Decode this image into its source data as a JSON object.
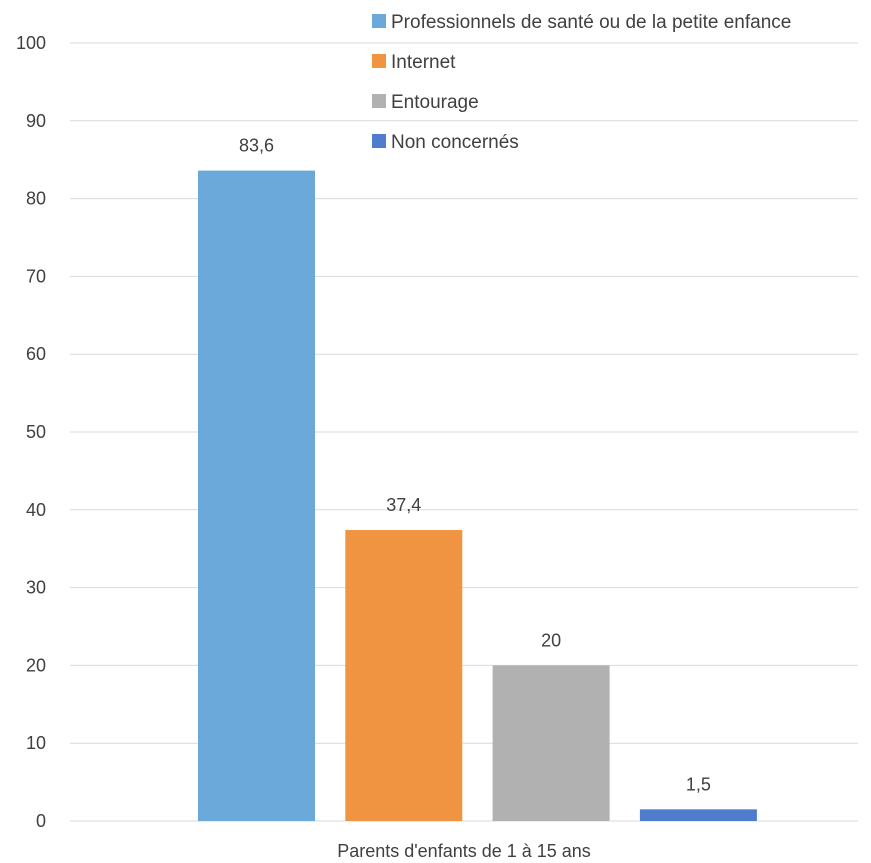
{
  "chart_data": {
    "type": "bar",
    "categories": [
      "Parents d'enfants de 1 à 15 ans"
    ],
    "series": [
      {
        "name": "Professionnels de santé ou de la petite enfance",
        "values": [
          83.6
        ],
        "label": "83,6",
        "color": "#6aa9da"
      },
      {
        "name": "Internet",
        "values": [
          37.4
        ],
        "label": "37,4",
        "color": "#f09441"
      },
      {
        "name": "Entourage",
        "values": [
          20
        ],
        "label": "20",
        "color": "#b1b1b1"
      },
      {
        "name": "Non concernés",
        "values": [
          1.5
        ],
        "label": "1,5",
        "color": "#4e7dcd"
      }
    ],
    "ylim": [
      0,
      100
    ],
    "yticks": [
      0,
      10,
      20,
      30,
      40,
      50,
      60,
      70,
      80,
      90,
      100
    ],
    "ytick_labels": [
      "0",
      "10",
      "20",
      "30",
      "40",
      "50",
      "60",
      "70",
      "80",
      "90",
      "100"
    ],
    "xlabel": "Parents d'enfants de 1 à 15 ans",
    "grid": true,
    "legend_position": "top-right"
  }
}
